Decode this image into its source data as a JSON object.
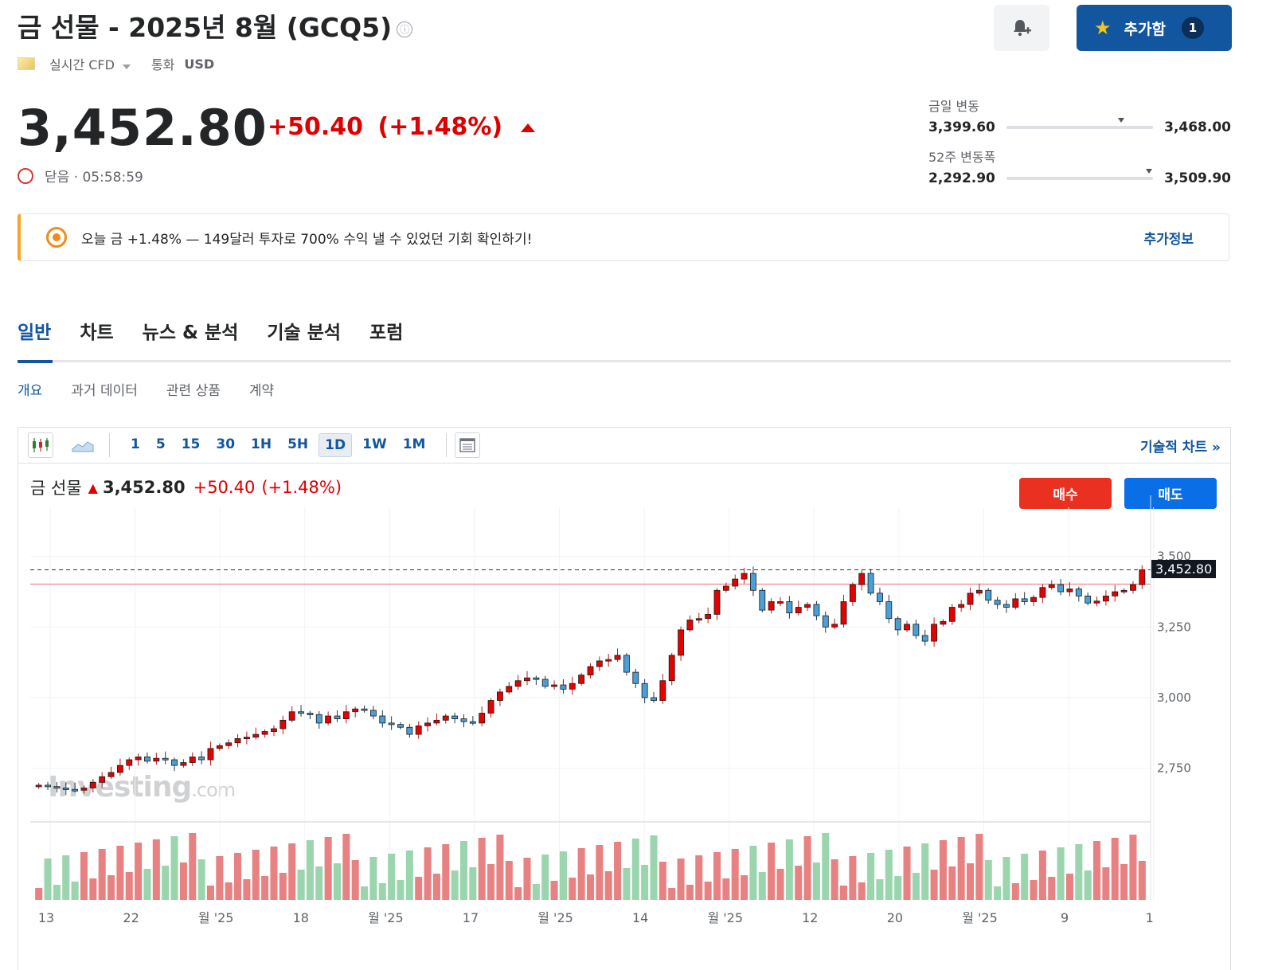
{
  "header": {
    "title": "금 선물 - 2025년 8월 (GCQ5)",
    "info_icon": "ⓘ",
    "watchlist_label": "추가함",
    "watchlist_count": "1",
    "bell_icon": "bell-plus-icon"
  },
  "meta": {
    "realtime_label": "실시간 CFD",
    "currency_label": "통화",
    "currency_value": "USD"
  },
  "quote": {
    "price": "3,452.80",
    "change": "+50.40",
    "change_pct": "(+1.48%)",
    "status": "닫음 · 05:58:59",
    "up_color": "#dd0000"
  },
  "ranges": {
    "day_label": "금일 변동",
    "day_low": "3,399.60",
    "day_high": "3,468.00",
    "day_position": 0.76,
    "week52_label": "52주 변동폭",
    "week52_low": "2,292.90",
    "week52_high": "3,509.90",
    "week52_position": 0.95
  },
  "promo": {
    "text": "오늘 금 +1.48% — 149달러 투자로 700% 수익 낼 수 있었던 기회 확인하기!",
    "link": "추가정보"
  },
  "tabs": [
    "일반",
    "차트",
    "뉴스 & 분석",
    "기술 분석",
    "포럼"
  ],
  "subtabs": [
    "개요",
    "과거 데이터",
    "관련 상품",
    "계약"
  ],
  "toolbar": {
    "intervals": [
      "1",
      "5",
      "15",
      "30",
      "1H",
      "5H",
      "1D",
      "1W",
      "1M"
    ],
    "selected_interval": "1D",
    "tech_chart_link": "기술적 차트 »"
  },
  "chart_legend": {
    "name": "금 선물",
    "price": "3,452.80",
    "change": "+50.40",
    "change_pct": "(+1.48%)"
  },
  "buttons": {
    "buy": "매수",
    "sell": "매도"
  },
  "watermark": {
    "brand": "Investing",
    "suffix": ".com"
  },
  "chart_data": {
    "type": "candlestick",
    "y_ticks": [
      "3,500",
      "3,250",
      "3,000",
      "2,750"
    ],
    "y_tick_values": [
      3500,
      3250,
      3000,
      2750
    ],
    "ylim": [
      2560,
      3660
    ],
    "x_ticks": [
      "13",
      "22",
      "월 '25",
      "18",
      "월 '25",
      "17",
      "월 '25",
      "14",
      "월 '25",
      "12",
      "20",
      "월 '25",
      "9",
      "1"
    ],
    "current_price_label": "3,452.80",
    "current_price": 3452.8,
    "prev_close": 3402.4,
    "up_color": "#e60000",
    "down_color": "#4a9fd8",
    "closes": [
      2690,
      2685,
      2680,
      2675,
      2672,
      2680,
      2700,
      2720,
      2735,
      2760,
      2780,
      2790,
      2775,
      2785,
      2780,
      2760,
      2770,
      2790,
      2780,
      2820,
      2830,
      2840,
      2855,
      2860,
      2870,
      2880,
      2890,
      2920,
      2950,
      2945,
      2940,
      2910,
      2935,
      2925,
      2950,
      2960,
      2955,
      2935,
      2910,
      2905,
      2895,
      2870,
      2900,
      2910,
      2920,
      2935,
      2925,
      2915,
      2910,
      2945,
      2990,
      3020,
      3040,
      3060,
      3070,
      3065,
      3040,
      3045,
      3030,
      3050,
      3080,
      3110,
      3130,
      3135,
      3150,
      3090,
      3050,
      3000,
      2990,
      3060,
      3150,
      3240,
      3275,
      3280,
      3295,
      3380,
      3395,
      3420,
      3440,
      3380,
      3310,
      3340,
      3340,
      3300,
      3320,
      3330,
      3290,
      3250,
      3260,
      3340,
      3400,
      3440,
      3370,
      3340,
      3280,
      3240,
      3260,
      3220,
      3200,
      3260,
      3270,
      3320,
      3330,
      3370,
      3380,
      3345,
      3330,
      3320,
      3350,
      3340,
      3355,
      3390,
      3400,
      3375,
      3385,
      3360,
      3335,
      3342,
      3360,
      3375,
      3380,
      3400,
      3452.8
    ],
    "volume_note": "daily volume bars below price chart"
  }
}
